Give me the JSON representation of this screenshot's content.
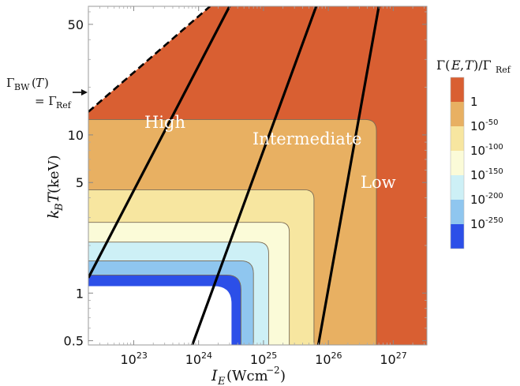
{
  "chart_data": {
    "type": "contour",
    "xlabel": "I_E (Wcm^-2)",
    "ylabel": "k_B T (keV)",
    "x_scale": "log",
    "y_scale": "log",
    "xlim": [
      2e+22,
      3.3e+27
    ],
    "ylim": [
      0.47,
      65
    ],
    "x_ticks": [
      {
        "value": 1e+23,
        "base": "10",
        "exp": "23"
      },
      {
        "value": 1e+24,
        "base": "10",
        "exp": "24"
      },
      {
        "value": 1e+25,
        "base": "10",
        "exp": "25"
      },
      {
        "value": 1e+26,
        "base": "10",
        "exp": "26"
      },
      {
        "value": 1e+27,
        "base": "10",
        "exp": "27"
      }
    ],
    "y_ticks": [
      {
        "value": 50,
        "label": "50"
      },
      {
        "value": 10,
        "label": "10"
      },
      {
        "value": 5,
        "label": "5"
      },
      {
        "value": 1,
        "label": "1"
      },
      {
        "value": 0.5,
        "label": "0.5"
      }
    ],
    "colorbar": {
      "title": "Γ(E,T)/Γ_Ref",
      "levels": [
        {
          "base": "1",
          "exp": "",
          "color": "#d95f32"
        },
        {
          "base": "10",
          "exp": "-50",
          "color": "#e8b062"
        },
        {
          "base": "10",
          "exp": "-100",
          "color": "#f7e6a0"
        },
        {
          "base": "10",
          "exp": "-150",
          "color": "#fbfbd8"
        },
        {
          "base": "10",
          "exp": "-200",
          "color": "#cdf0f6"
        },
        {
          "base": "10",
          "exp": "-250",
          "color": "#8fc6ef"
        },
        {
          "base": "",
          "exp": "",
          "color": "#2c4fe8"
        }
      ]
    },
    "contour_corners": [
      {
        "level": "1",
        "x_knee": 5.5e+26,
        "y_knee": 12.5
      },
      {
        "level": "10^-50",
        "x_knee": 6e+25,
        "y_knee": 4.5
      },
      {
        "level": "10^-100",
        "x_knee": 2.5e+25,
        "y_knee": 2.8
      },
      {
        "level": "10^-150",
        "x_knee": 1.2e+25,
        "y_knee": 2.1
      },
      {
        "level": "10^-200",
        "x_knee": 7e+24,
        "y_knee": 1.6
      },
      {
        "level": "10^-250",
        "x_knee": 4.5e+24,
        "y_knee": 1.3
      }
    ],
    "boundary_lines": [
      {
        "name": "high-intermediate",
        "points": [
          [
            2e+22,
            1.25
          ],
          [
            3e+24,
            65
          ]
        ]
      },
      {
        "name": "intermediate-low",
        "points": [
          [
            8e+23,
            0.47
          ],
          [
            6.5e+25,
            65
          ]
        ]
      },
      {
        "name": "low-right",
        "points": [
          [
            7e+25,
            0.47
          ],
          [
            6e+26,
            65
          ]
        ]
      },
      {
        "name": "barrier-suppression-dashed",
        "points": [
          [
            2e+22,
            14
          ],
          [
            1.5e+24,
            65
          ]
        ]
      }
    ],
    "region_labels": [
      "High",
      "Intermediate",
      "Low"
    ],
    "annotation": {
      "line1": "Γ_BW(T)",
      "line2": "= Γ_Ref"
    }
  }
}
